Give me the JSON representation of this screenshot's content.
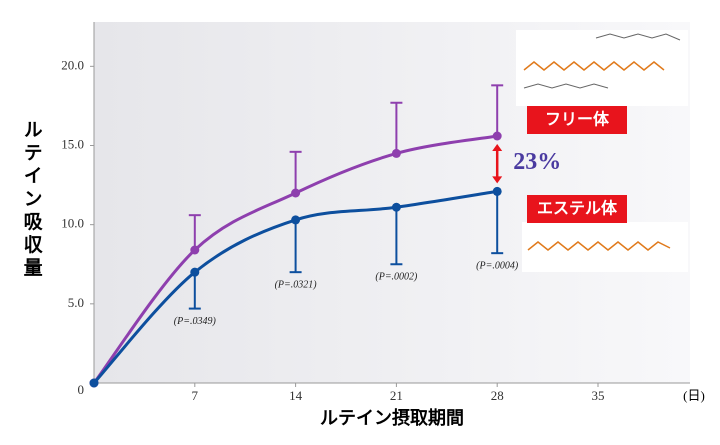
{
  "chart_data": {
    "type": "line",
    "x_label": "ルテイン摂取期間",
    "x_unit": "(日)",
    "y_label": "ルテイン吸収量",
    "x": [
      0,
      7,
      14,
      21,
      28
    ],
    "xlim": [
      0,
      40
    ],
    "xticks": [
      7,
      14,
      21,
      28,
      35
    ],
    "ylim": [
      0,
      22.8
    ],
    "yticks": [
      0,
      {
        "value": 5,
        "label": "5.0"
      },
      {
        "value": 10,
        "label": "10.0"
      },
      {
        "value": 15,
        "label": "15.0"
      },
      {
        "value": 20,
        "label": "20.0"
      }
    ],
    "series": [
      {
        "name": "フリー体",
        "color": "#8e3fae",
        "label_color": "#e8141c",
        "values": [
          0,
          8.4,
          12.0,
          14.5,
          15.6
        ],
        "errors": [
          null,
          2.2,
          2.6,
          3.2,
          3.2
        ],
        "error_direction": "up"
      },
      {
        "name": "エステル体",
        "color": "#0d4f9e",
        "label_color": "#e8141c",
        "values": [
          0,
          7.0,
          10.3,
          11.1,
          12.1
        ],
        "errors": [
          null,
          2.3,
          3.3,
          3.6,
          3.9
        ],
        "error_direction": "down"
      }
    ],
    "p_values": [
      null,
      "(P=.0349)",
      "(P=.0321)",
      "(P=.0002)",
      "(P=.0004)"
    ],
    "difference_label": "23%"
  }
}
